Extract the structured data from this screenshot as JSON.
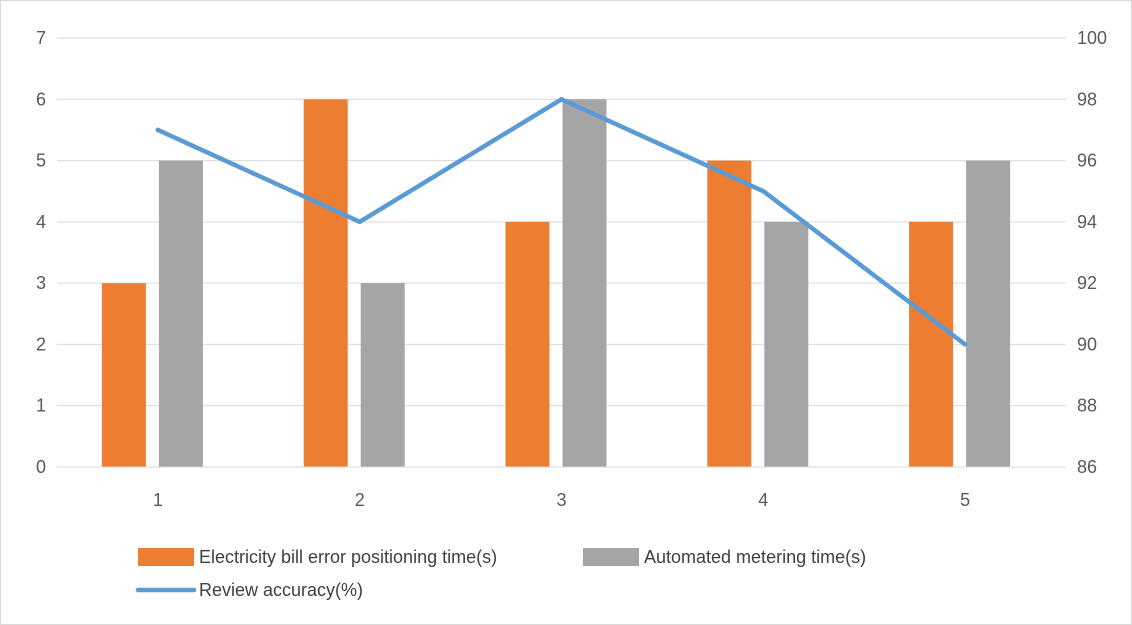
{
  "chart_data": {
    "type": "bar",
    "title": "",
    "xlabel": "",
    "ylabel": "",
    "y2label": "",
    "categories": [
      "1",
      "2",
      "3",
      "4",
      "5"
    ],
    "series": [
      {
        "name": "Electricity bill error positioning time(s)",
        "type": "bar",
        "axis": "left",
        "color": "#ED7D31",
        "values": [
          3,
          6,
          4,
          5,
          4
        ]
      },
      {
        "name": "Automated metering time(s)",
        "type": "bar",
        "axis": "left",
        "color": "#A5A5A5",
        "values": [
          5,
          3,
          6,
          4,
          5
        ]
      },
      {
        "name": "Review accuracy(%)",
        "type": "line",
        "axis": "right",
        "color": "#5B9BD5",
        "values": [
          97,
          94,
          98,
          95,
          90
        ]
      }
    ],
    "ylim": [
      0,
      7
    ],
    "yticks": [
      "0",
      "1",
      "2",
      "3",
      "4",
      "5",
      "6",
      "7"
    ],
    "y2lim": [
      86,
      100
    ],
    "y2ticks": [
      "86",
      "88",
      "90",
      "92",
      "94",
      "96",
      "98",
      "100"
    ],
    "grid": true,
    "legend_position": "bottom"
  }
}
